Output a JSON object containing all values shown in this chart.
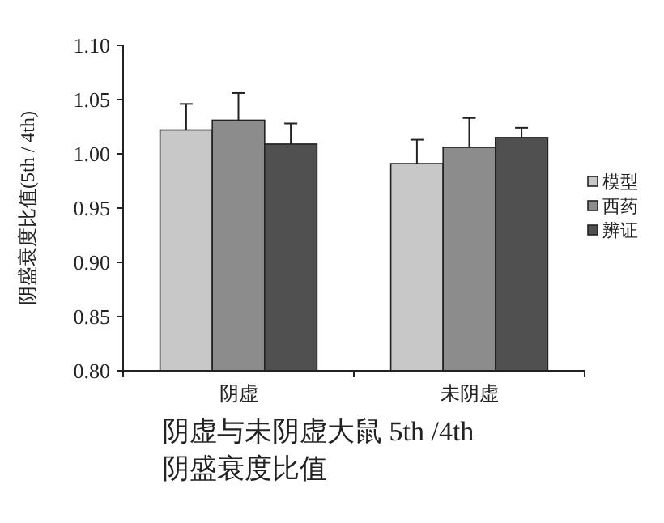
{
  "chart_data": {
    "type": "bar",
    "title": "阴虚与未阴虚大鼠 5th /4th 阴盛衰度比值",
    "ylabel": "阴盛衰度比值(5th / 4th)",
    "categories": [
      "阴虚",
      "未阴虚"
    ],
    "series": [
      {
        "name": "模型",
        "color": "#c8c8c8",
        "values": [
          1.022,
          0.991
        ],
        "errors": [
          [
            1.022,
            1.046
          ],
          [
            0.991,
            1.013
          ]
        ]
      },
      {
        "name": "西药",
        "color": "#8c8c8c",
        "values": [
          1.031,
          1.006
        ],
        "errors": [
          [
            1.031,
            1.056
          ],
          [
            1.006,
            1.033
          ]
        ]
      },
      {
        "name": "辨证",
        "color": "#505050",
        "values": [
          1.009,
          1.015
        ],
        "errors": [
          [
            1.009,
            1.028
          ],
          [
            1.015,
            1.024
          ]
        ]
      }
    ],
    "ylim": [
      0.8,
      1.1
    ],
    "yticks": [
      {
        "value": 0.8,
        "label": "0.80"
      },
      {
        "value": 0.85,
        "label": "0.85"
      },
      {
        "value": 0.9,
        "label": "0.90"
      },
      {
        "value": 0.95,
        "label": "0.95"
      },
      {
        "value": 1.0,
        "label": "1.00"
      },
      {
        "value": 1.05,
        "label": "1.05"
      },
      {
        "value": 1.1,
        "label": "1.10"
      }
    ],
    "grid": false,
    "legend": "right"
  }
}
